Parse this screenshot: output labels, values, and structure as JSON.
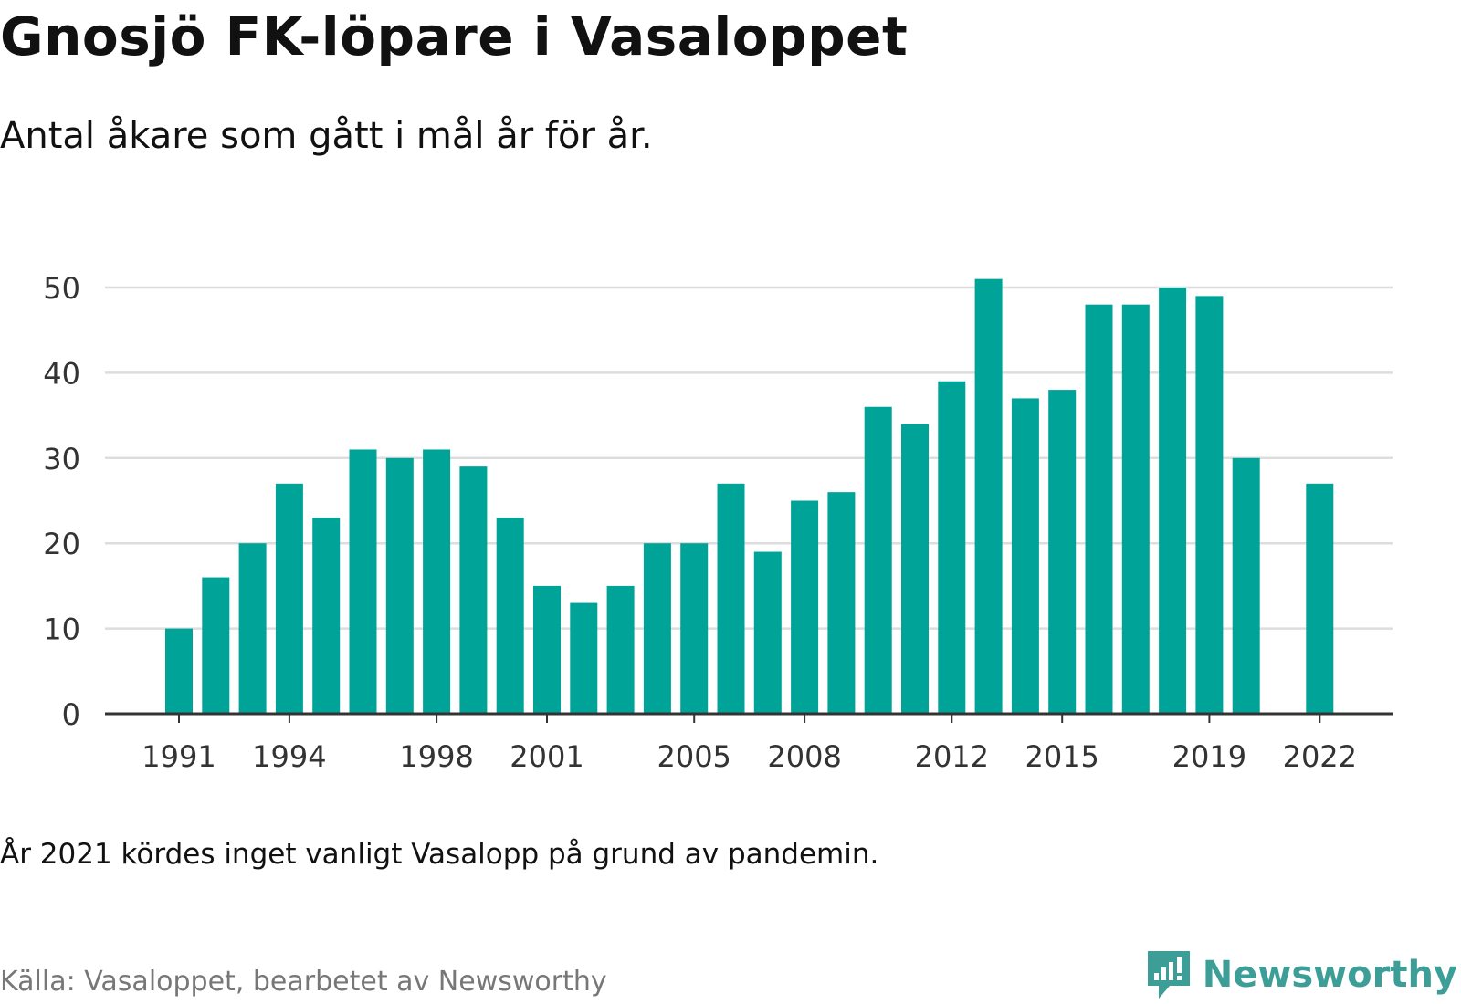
{
  "title": "Gnosjö FK-löpare i Vasaloppet",
  "subtitle": "Antal åkare som gått i mål år för år.",
  "note": "År 2021 kördes inget vanligt Vasalopp på grund av pandemin.",
  "source": "Källa: Vasaloppet, bearbetet av Newsworthy",
  "brand": {
    "name": "Newsworthy",
    "icon": "newsworthy-logo-icon",
    "color": "#3c9e96"
  },
  "colors": {
    "bar": "#00a398",
    "grid": "#dddddd",
    "axis": "#333333",
    "tick_text": "#333333"
  },
  "chart_data": {
    "type": "bar",
    "categories": [
      "1991",
      "1992",
      "1993",
      "1994",
      "1995",
      "1996",
      "1997",
      "1998",
      "1999",
      "2000",
      "2001",
      "2002",
      "2003",
      "2004",
      "2005",
      "2006",
      "2007",
      "2008",
      "2009",
      "2010",
      "2011",
      "2012",
      "2013",
      "2014",
      "2015",
      "2016",
      "2017",
      "2018",
      "2019",
      "2020",
      "2021",
      "2022"
    ],
    "values": [
      10,
      16,
      20,
      27,
      23,
      31,
      30,
      31,
      29,
      23,
      15,
      13,
      15,
      20,
      20,
      27,
      19,
      25,
      26,
      36,
      34,
      39,
      51,
      37,
      38,
      48,
      48,
      50,
      49,
      30,
      null,
      27
    ],
    "x_tick_labels": [
      "1991",
      "1994",
      "1998",
      "2001",
      "2005",
      "2008",
      "2012",
      "2015",
      "2019",
      "2022"
    ],
    "y_ticks": [
      0,
      10,
      20,
      30,
      40,
      50
    ],
    "ylim": [
      0,
      52
    ],
    "grid": true,
    "legend": "none"
  }
}
